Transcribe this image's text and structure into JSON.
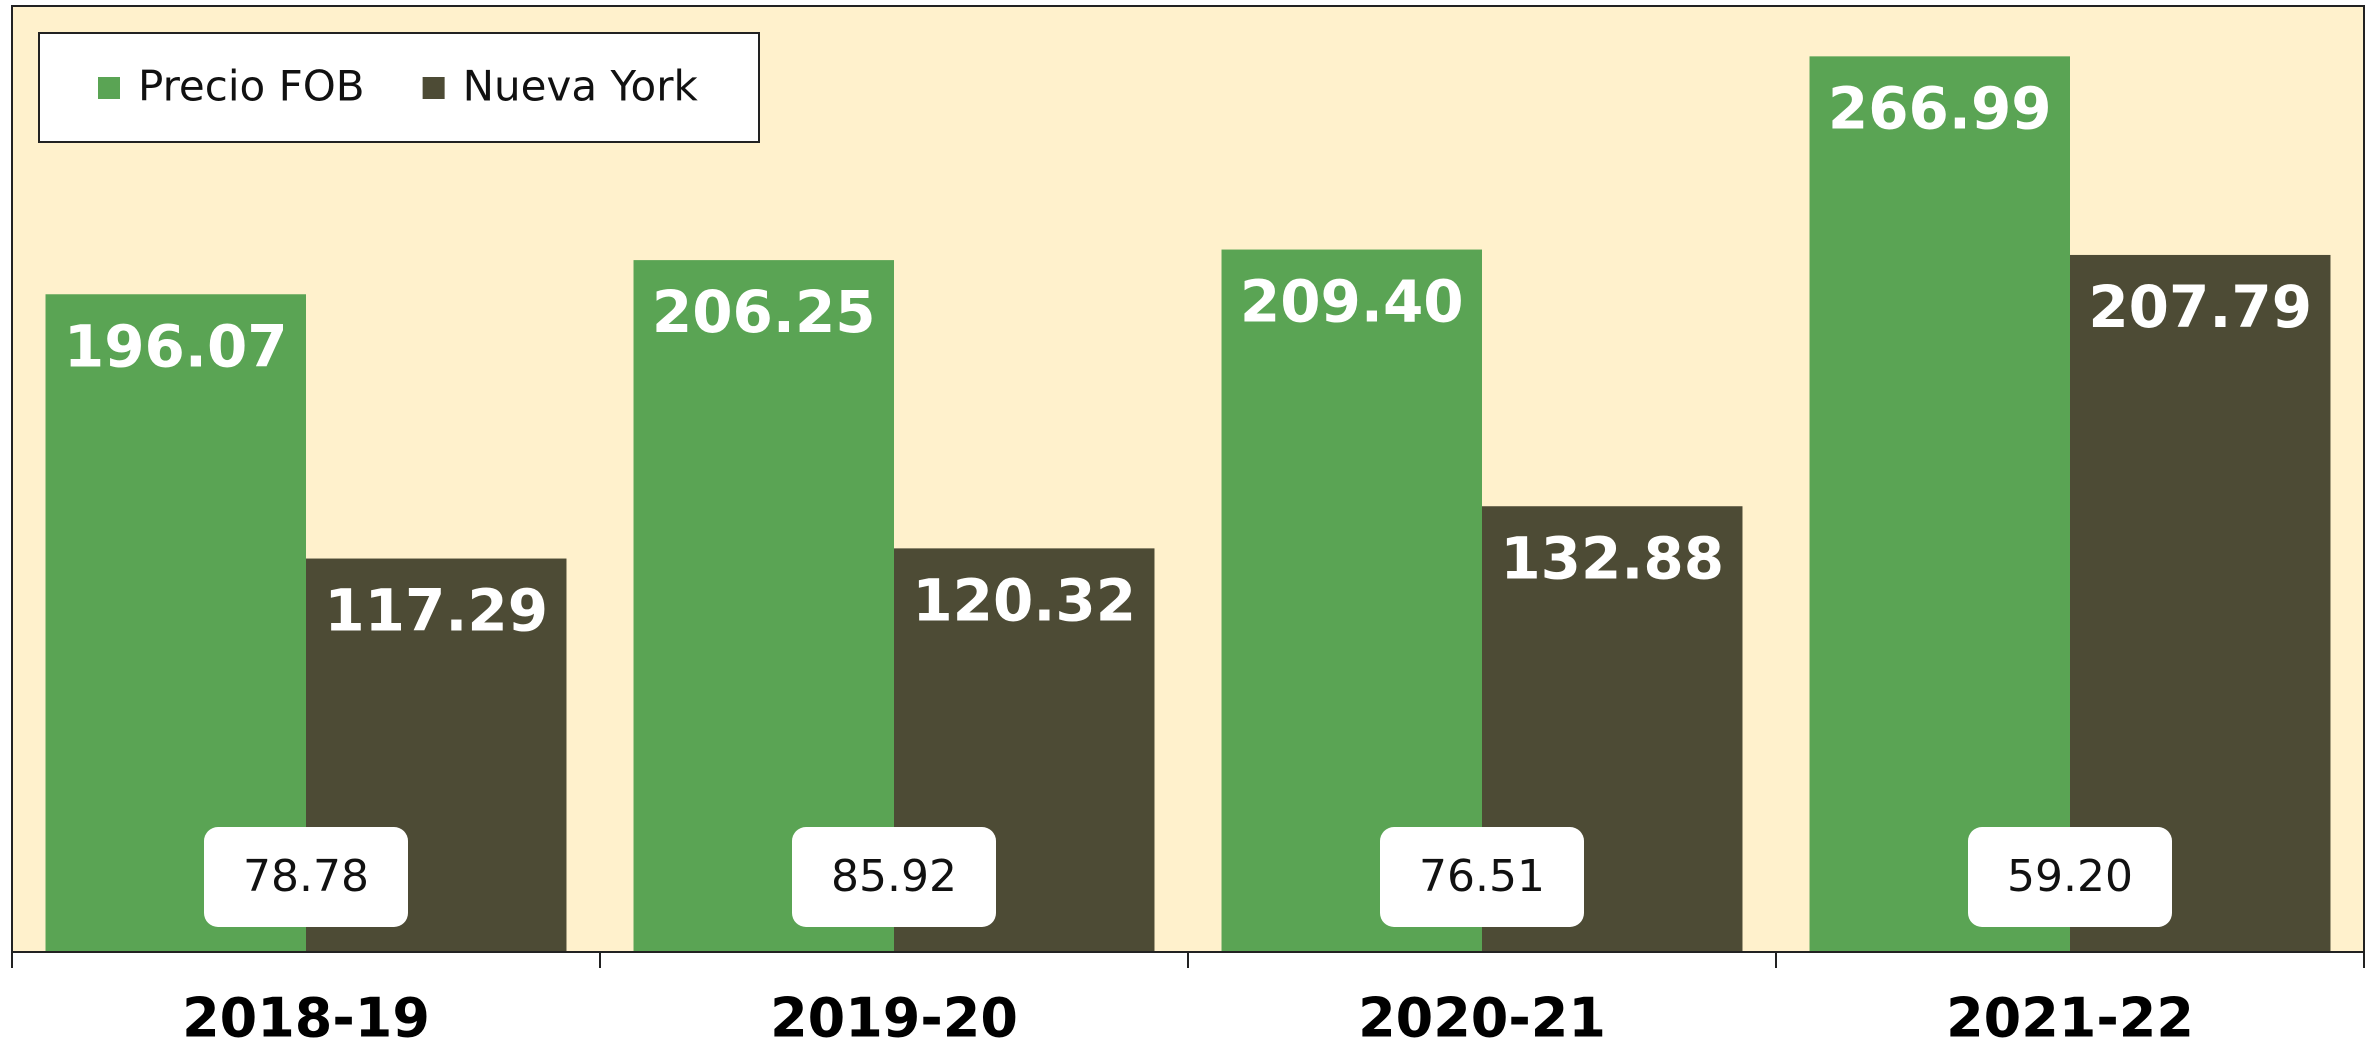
{
  "chart_data": {
    "type": "bar",
    "categories": [
      "2018-19",
      "2019-20",
      "2020-21",
      "2021-22"
    ],
    "series": [
      {
        "name": "Precio FOB",
        "color": "#5aa454",
        "values": [
          196.07,
          206.25,
          209.4,
          266.99
        ],
        "value_labels": [
          "196.07",
          "206.25",
          "209.40",
          "266.99"
        ]
      },
      {
        "name": "Nueva York",
        "color": "#4d4b35",
        "values": [
          117.29,
          120.32,
          132.88,
          207.79
        ],
        "value_labels": [
          "117.29",
          "120.32",
          "132.88",
          "207.79"
        ]
      }
    ],
    "differences": {
      "values": [
        78.78,
        85.92,
        76.51,
        59.2
      ],
      "value_labels": [
        "78.78",
        "85.92",
        "76.51",
        "59.20"
      ]
    },
    "ylim": [
      0,
      282
    ],
    "legend": "top-left",
    "background": "#fff1cc"
  }
}
